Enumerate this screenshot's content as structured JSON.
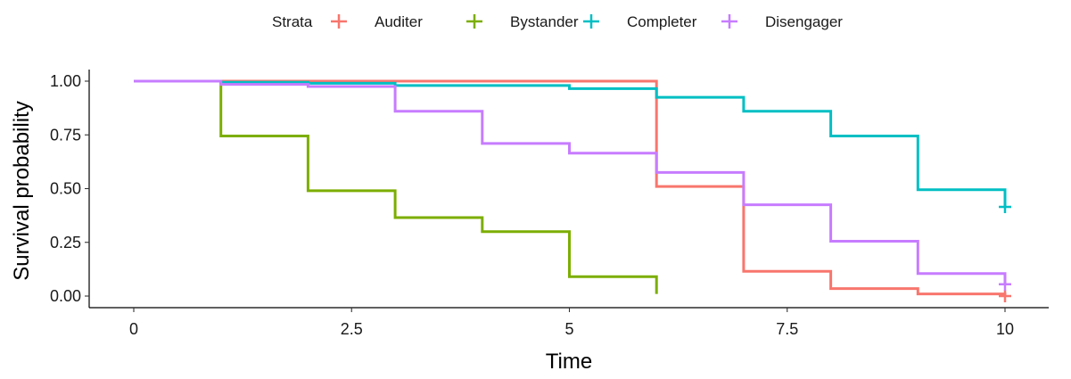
{
  "chart_data": {
    "type": "line",
    "step": true,
    "xlabel": "Time",
    "ylabel": "Survival probability",
    "xlim": [
      0,
      10
    ],
    "ylim": [
      0,
      1
    ],
    "x_ticks": [
      0,
      2.5,
      5,
      7.5,
      10
    ],
    "x_tick_labels": [
      "0",
      "2.5",
      "5",
      "7.5",
      "10"
    ],
    "y_ticks": [
      0,
      0.25,
      0.5,
      0.75,
      1
    ],
    "y_tick_labels": [
      "0.00",
      "0.25",
      "0.50",
      "0.75",
      "1.00"
    ],
    "grid": false,
    "legend": {
      "title": "Strata",
      "position": "top"
    },
    "series": [
      {
        "name": "Auditer",
        "color": "#F8766D",
        "x": [
          0,
          6,
          7,
          8,
          9,
          10
        ],
        "y": [
          1.0,
          0.51,
          0.115,
          0.035,
          0.01,
          0.0
        ],
        "censor": [
          [
            10,
            0.0
          ]
        ]
      },
      {
        "name": "Bystander",
        "color": "#7CAE00",
        "x": [
          0,
          1,
          2,
          3,
          4,
          5,
          6
        ],
        "y": [
          1.0,
          0.745,
          0.49,
          0.365,
          0.3,
          0.09,
          0.01
        ],
        "censor": []
      },
      {
        "name": "Completer",
        "color": "#00BFC4",
        "x": [
          0,
          1,
          2,
          3,
          5,
          6,
          7,
          8,
          9,
          10
        ],
        "y": [
          1.0,
          0.995,
          0.99,
          0.98,
          0.965,
          0.925,
          0.86,
          0.745,
          0.495,
          0.415
        ],
        "censor": [
          [
            10,
            0.415
          ]
        ]
      },
      {
        "name": "Disengager",
        "color": "#C77CFF",
        "x": [
          0,
          1,
          2,
          3,
          4,
          5,
          6,
          7,
          8,
          9,
          10
        ],
        "y": [
          1.0,
          0.985,
          0.975,
          0.86,
          0.71,
          0.665,
          0.575,
          0.425,
          0.255,
          0.105,
          0.055
        ],
        "censor": [
          [
            10,
            0.055
          ]
        ]
      }
    ]
  }
}
